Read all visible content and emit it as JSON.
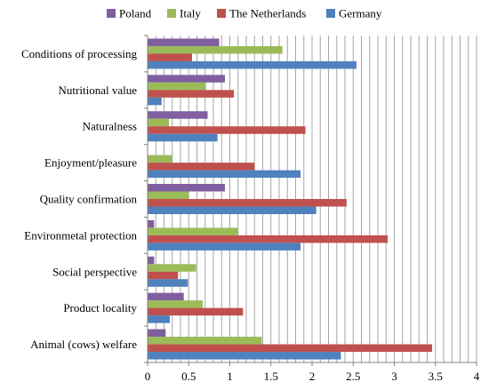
{
  "chart_data": {
    "type": "bar",
    "orientation": "horizontal",
    "categories": [
      "Conditions of processing",
      "Nutritional value",
      "Naturalness",
      "Enjoyment/pleasure",
      "Quality confirmation",
      "Environmetal protection",
      "Social perspective",
      "Product locality",
      "Animal (cows) welfare"
    ],
    "series": [
      {
        "name": "Poland",
        "color": "#7f5fa0",
        "values": [
          0.87,
          0.94,
          0.73,
          0.0,
          0.94,
          0.08,
          0.08,
          0.44,
          0.22
        ]
      },
      {
        "name": "Italy",
        "color": "#9bbb59",
        "values": [
          1.64,
          0.71,
          0.26,
          0.3,
          0.5,
          1.1,
          0.59,
          0.67,
          1.39
        ]
      },
      {
        "name": "The Netherlands",
        "color": "#c0504d",
        "values": [
          0.54,
          1.05,
          1.92,
          1.3,
          2.42,
          2.92,
          0.37,
          1.16,
          3.46
        ]
      },
      {
        "name": "Germany",
        "color": "#4f81bd",
        "values": [
          2.54,
          0.17,
          0.85,
          1.86,
          2.05,
          1.86,
          0.49,
          0.27,
          2.35
        ]
      }
    ],
    "xlim": [
      0,
      4
    ],
    "xticks": [
      "0",
      "0.5",
      "1",
      "1.5",
      "2",
      "2.5",
      "3",
      "3.5",
      "4"
    ],
    "minor_grid_step": 0.1,
    "grid": true,
    "legend_position": "top"
  }
}
